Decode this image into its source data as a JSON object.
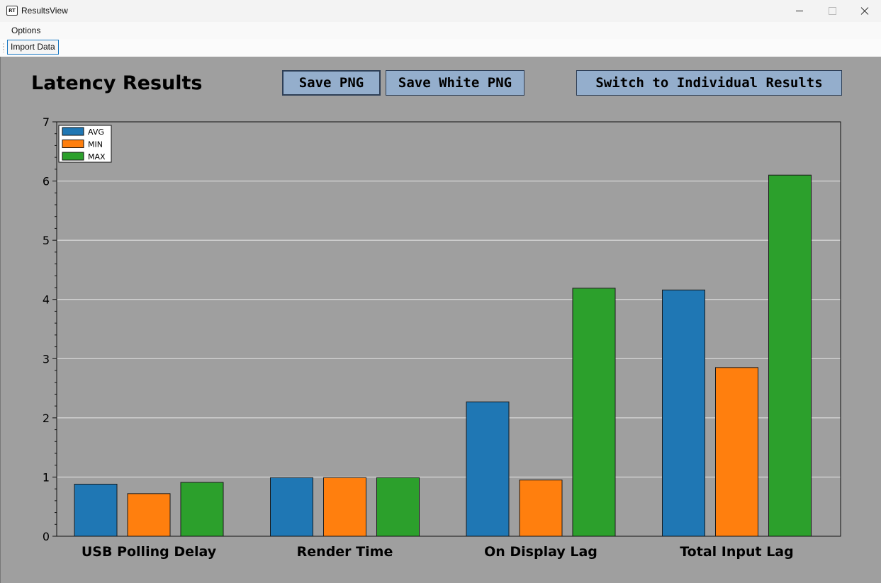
{
  "window": {
    "title": "ResultsView",
    "icon": "RT"
  },
  "menu": {
    "options_label": "Options"
  },
  "toolbar": {
    "import_label": "Import Data"
  },
  "page": {
    "title": "Latency Results"
  },
  "buttons": {
    "save_png": "Save PNG",
    "save_white_png": "Save White PNG",
    "switch_view": "Switch to Individual Results"
  },
  "colors": {
    "avg": "#1f77b4",
    "min": "#ff7f0e",
    "max": "#2ca02c",
    "background": "#9f9f9f"
  },
  "chart_data": {
    "type": "bar",
    "title": "",
    "xlabel": "",
    "ylabel": "",
    "categories": [
      "USB Polling Delay",
      "Render Time",
      "On Display Lag",
      "Total Input Lag"
    ],
    "series": [
      {
        "name": "AVG",
        "values": [
          0.88,
          0.99,
          2.27,
          4.16
        ]
      },
      {
        "name": "MIN",
        "values": [
          0.72,
          0.99,
          0.95,
          2.85
        ]
      },
      {
        "name": "MAX",
        "values": [
          0.91,
          0.99,
          4.19,
          6.1
        ]
      }
    ],
    "ylim": [
      0,
      7
    ],
    "yticks": [
      "0",
      "1",
      "2",
      "3",
      "4",
      "5",
      "6",
      "7"
    ],
    "grid": true,
    "legend": "top-left"
  }
}
